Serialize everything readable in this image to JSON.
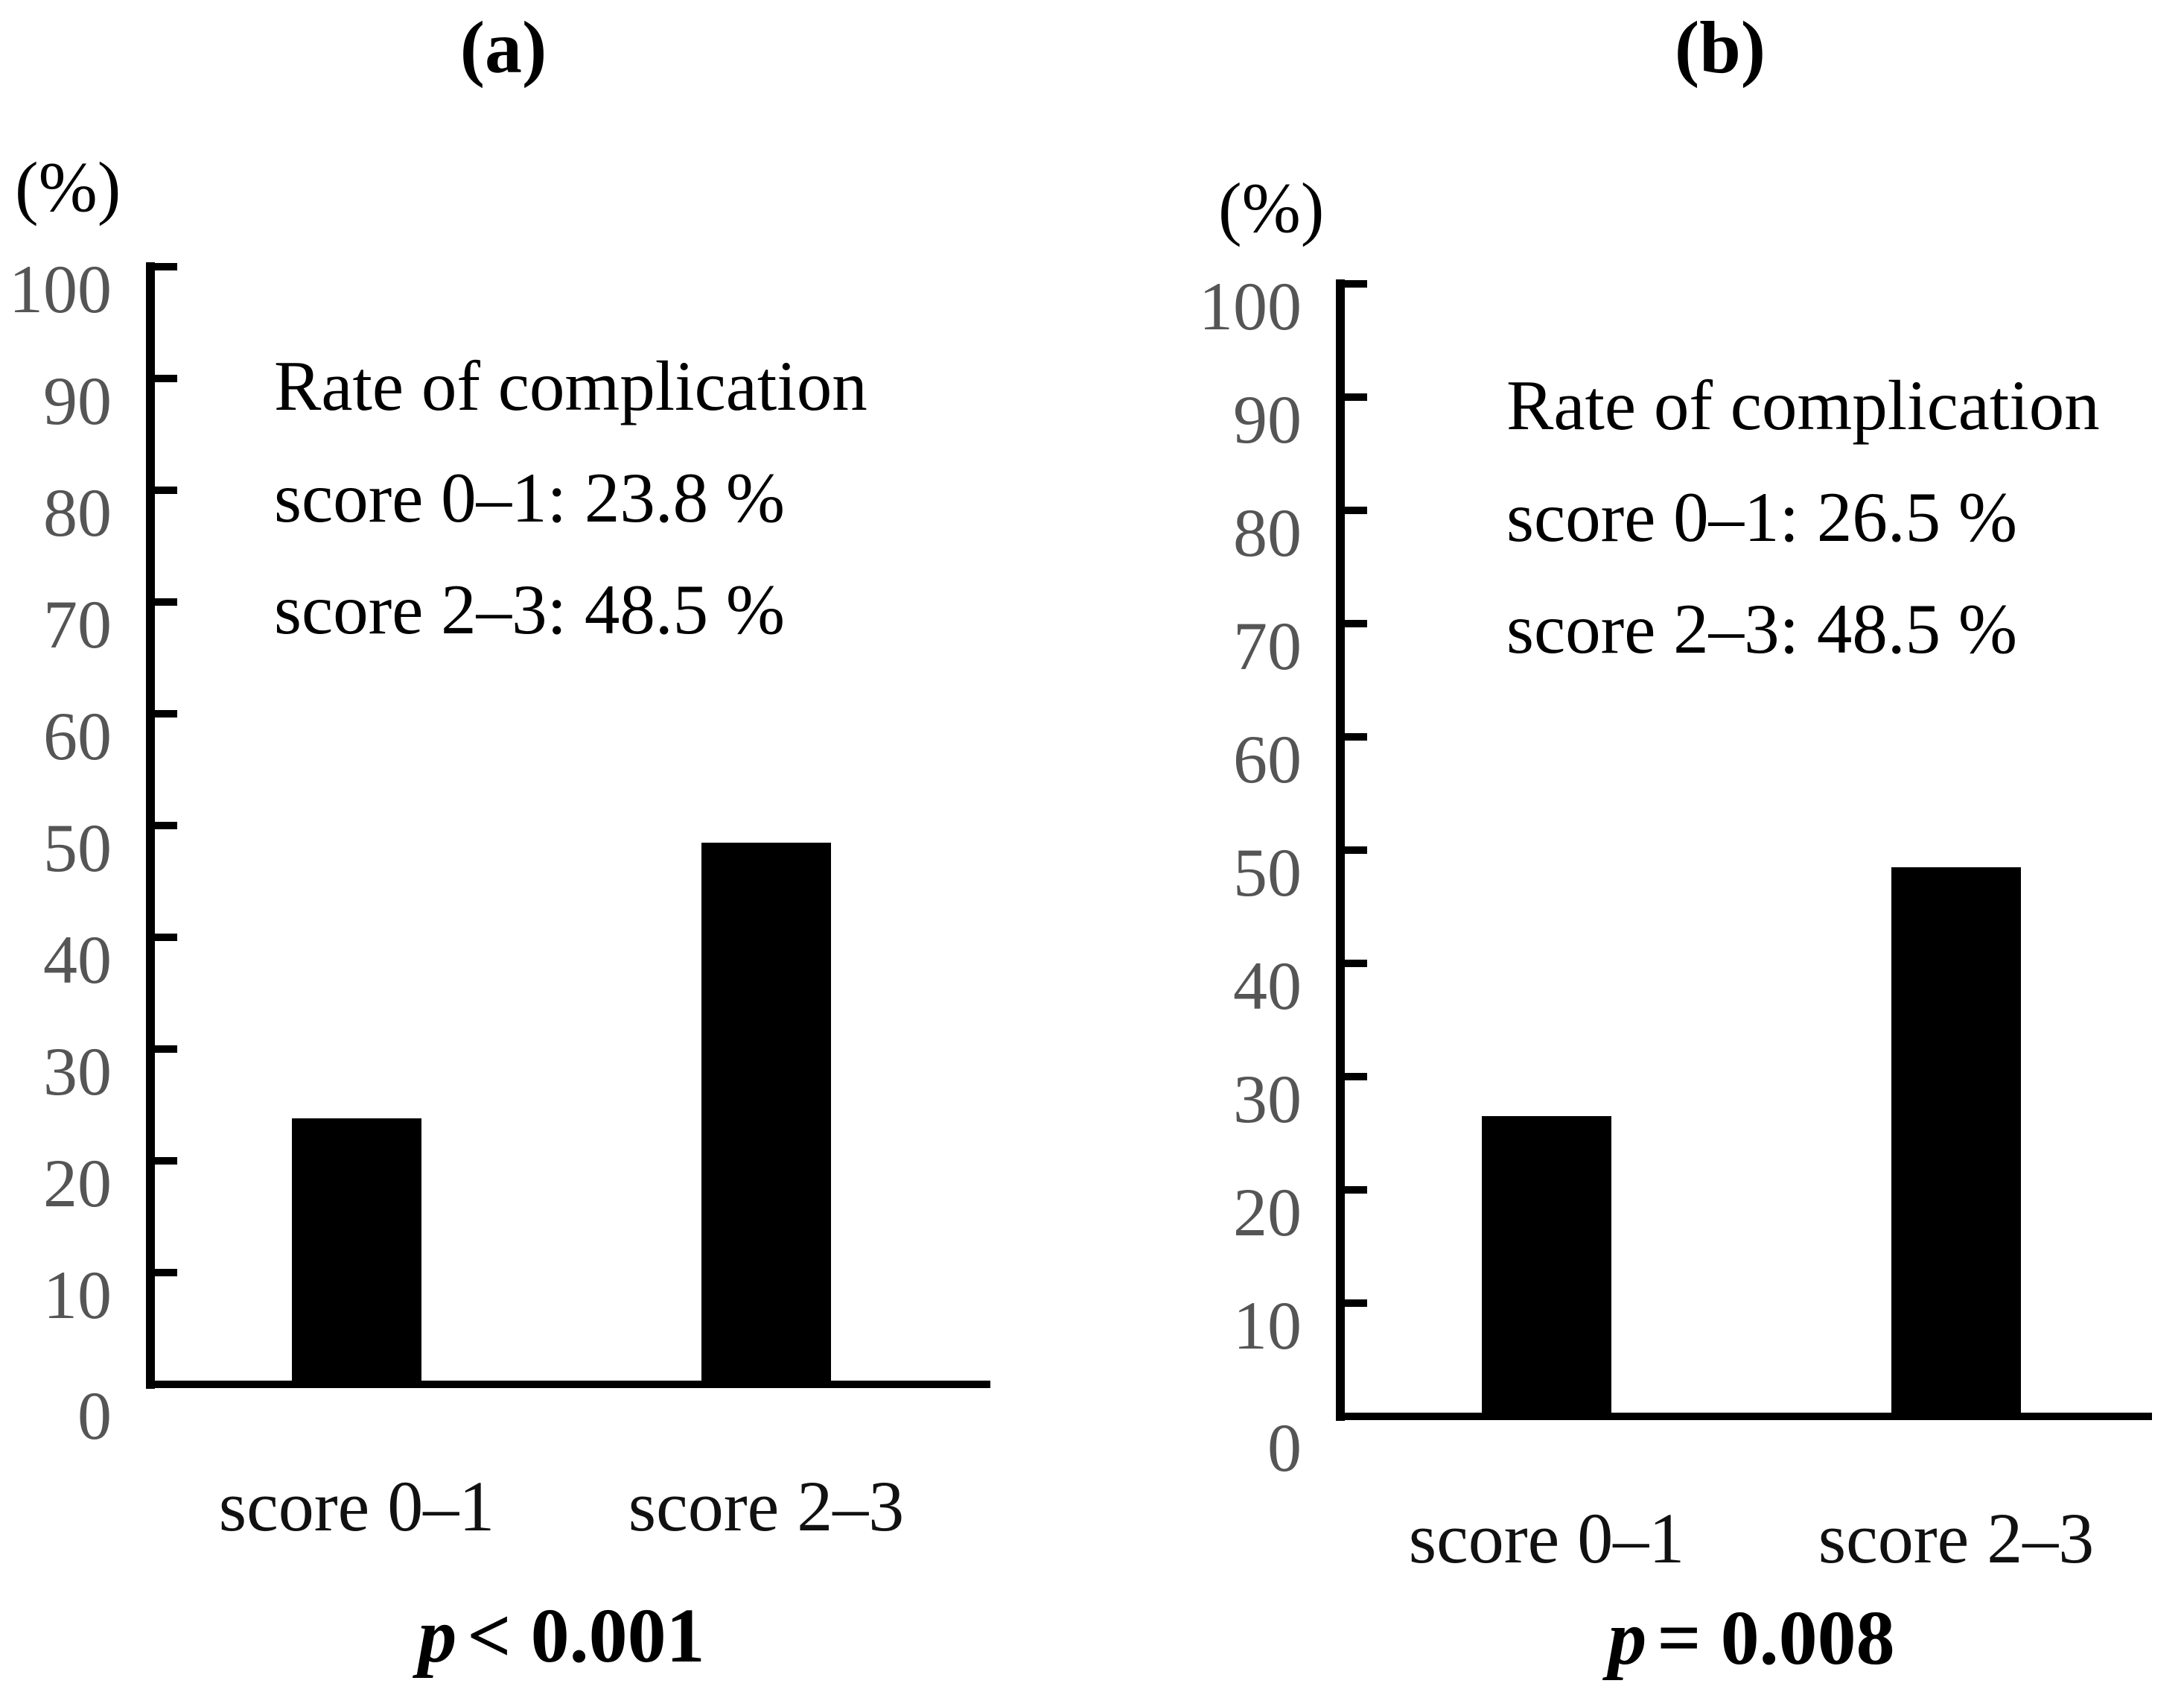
{
  "chart_data": [
    {
      "type": "bar",
      "panel_label": "(a)",
      "ylabel": "(%)",
      "xlabel": "",
      "ylim": [
        0,
        100
      ],
      "ytick_step": 10,
      "ytick_labels": [
        "100",
        "90",
        "80",
        "70",
        "60",
        "50",
        "40",
        "30",
        "20",
        "10",
        "0"
      ],
      "categories": [
        "score 0–1",
        "score 2–3"
      ],
      "values": [
        23.8,
        48.5
      ],
      "bar_color": "#000000",
      "axis_color": "#000000",
      "ytick_label_color": "#555555",
      "grid": false,
      "legend": false,
      "annotation": {
        "title": "Rate of complication",
        "lines": [
          "score 0–1: 23.8 %",
          "score 2–3: 48.5 %"
        ]
      },
      "p_value": {
        "symbol": "p",
        "rest": "< 0.001"
      }
    },
    {
      "type": "bar",
      "panel_label": "(b)",
      "ylabel": "(%)",
      "xlabel": "",
      "ylim": [
        0,
        100
      ],
      "ytick_step": 10,
      "ytick_labels": [
        "100",
        "90",
        "80",
        "70",
        "60",
        "50",
        "40",
        "30",
        "20",
        "10",
        "0"
      ],
      "categories": [
        "score 0–1",
        "score 2–3"
      ],
      "values": [
        26.5,
        48.5
      ],
      "bar_color": "#000000",
      "axis_color": "#000000",
      "ytick_label_color": "#555555",
      "grid": false,
      "legend": false,
      "annotation": {
        "title": "Rate of complication",
        "lines": [
          "score 0–1: 26.5 %",
          "score 2–3: 48.5 %"
        ]
      },
      "p_value": {
        "symbol": "p",
        "rest": "= 0.008"
      }
    }
  ]
}
